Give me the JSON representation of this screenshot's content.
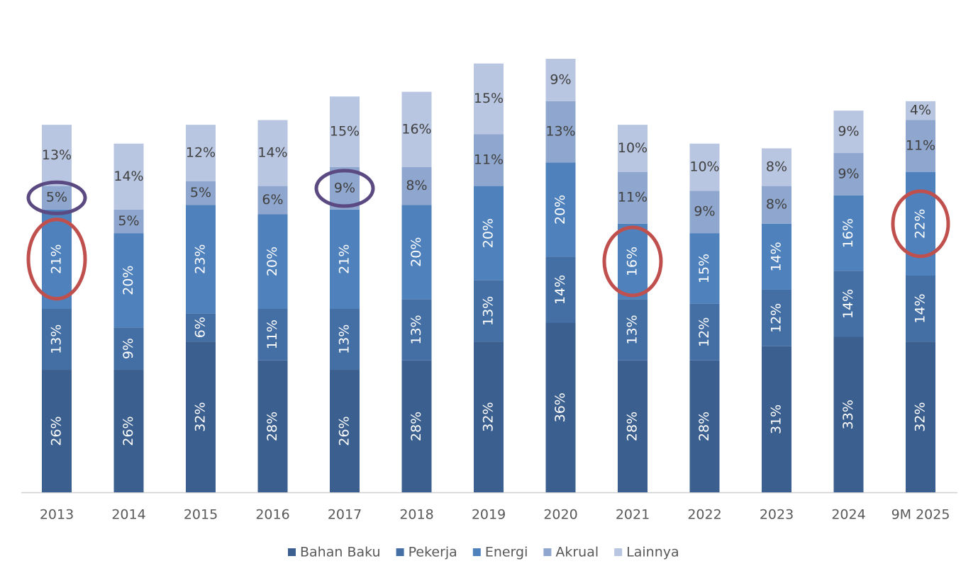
{
  "chart_data": {
    "type": "stacked-bar",
    "categories": [
      "2013",
      "2014",
      "2015",
      "2016",
      "2017",
      "2018",
      "2019",
      "2020",
      "2021",
      "2022",
      "2023",
      "2024",
      "9M 2025"
    ],
    "series": [
      {
        "name": "Bahan Baku",
        "color": "#3b5f8f",
        "values": [
          26,
          26,
          32,
          28,
          26,
          28,
          32,
          36,
          28,
          28,
          31,
          33,
          32
        ],
        "value_labels": [
          "26%",
          "26%",
          "32%",
          "28%",
          "26%",
          "28%",
          "32%",
          "36%",
          "28%",
          "28%",
          "31%",
          "33%",
          "32%"
        ]
      },
      {
        "name": "Pekerja",
        "color": "#446fa5",
        "values": [
          13,
          9,
          6,
          11,
          13,
          13,
          13,
          14,
          13,
          12,
          12,
          14,
          14
        ],
        "value_labels": [
          "13%",
          "9%",
          "6%",
          "11%",
          "13%",
          "13%",
          "13%",
          "14%",
          "13%",
          "12%",
          "12%",
          "14%",
          "14%"
        ]
      },
      {
        "name": "Energi",
        "color": "#4f81bd",
        "values": [
          21,
          20,
          23,
          20,
          21,
          20,
          20,
          20,
          16,
          15,
          14,
          16,
          22
        ],
        "value_labels": [
          "21%",
          "20%",
          "23%",
          "20%",
          "21%",
          "20%",
          "20%",
          "20%",
          "16%",
          "15%",
          "14%",
          "16%",
          "22%"
        ]
      },
      {
        "name": "Akrual",
        "color": "#8fa7ce",
        "values": [
          5,
          5,
          5,
          6,
          9,
          8,
          11,
          13,
          11,
          9,
          8,
          9,
          11
        ],
        "value_labels": [
          "5%",
          "5%",
          "5%",
          "6%",
          "9%",
          "8%",
          "11%",
          "13%",
          "11%",
          "9%",
          "8%",
          "9%",
          "11%"
        ]
      },
      {
        "name": "Lainnya",
        "color": "#b9c6e1",
        "values": [
          13,
          14,
          12,
          14,
          15,
          16,
          15,
          9,
          10,
          10,
          8,
          9,
          4
        ],
        "value_labels": [
          "13%",
          "14%",
          "12%",
          "14%",
          "15%",
          "16%",
          "15%",
          "9%",
          "10%",
          "10%",
          "8%",
          "9%",
          "4%"
        ]
      }
    ]
  }
}
